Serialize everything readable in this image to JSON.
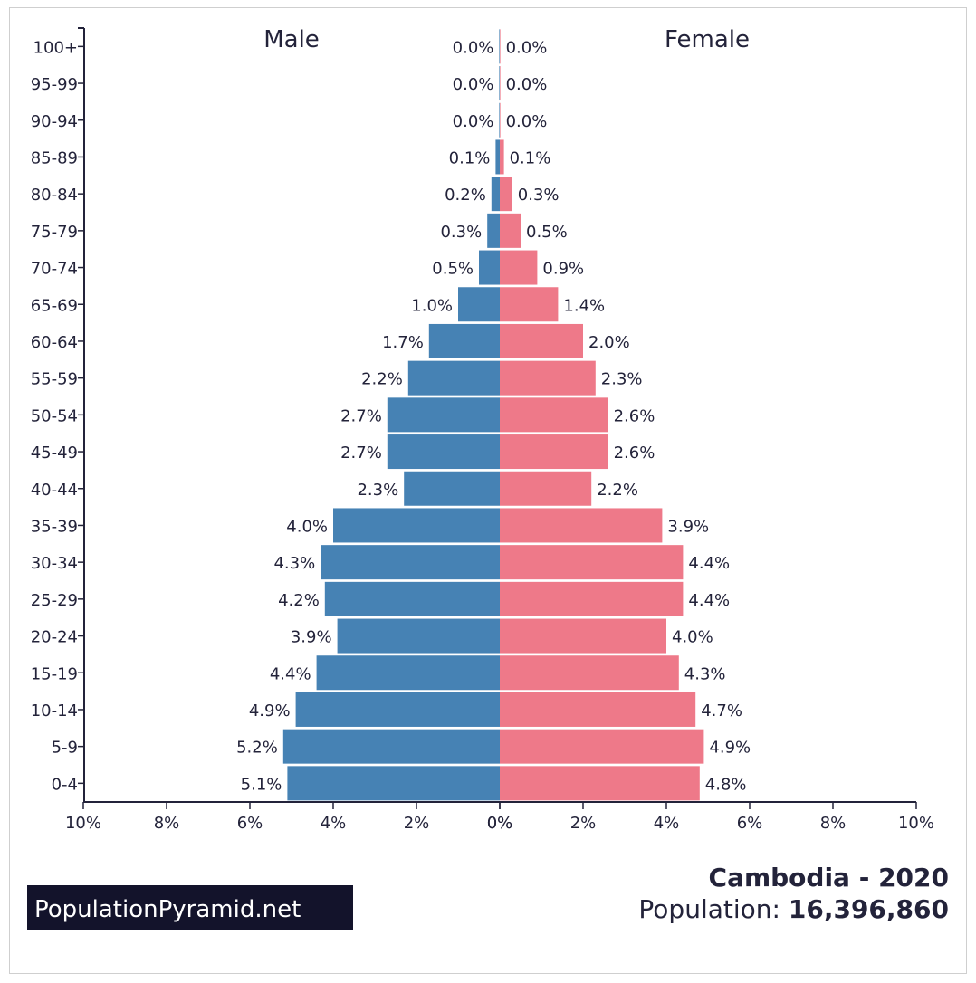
{
  "chart_data": {
    "type": "bar",
    "orientation": "horizontal-pyramid",
    "categories": [
      "100+",
      "95-99",
      "90-94",
      "85-89",
      "80-84",
      "75-79",
      "70-74",
      "65-69",
      "60-64",
      "55-59",
      "50-54",
      "45-49",
      "40-44",
      "35-39",
      "30-34",
      "25-29",
      "20-24",
      "15-19",
      "10-14",
      "5-9",
      "0-4"
    ],
    "series": [
      {
        "name": "Male",
        "color": "#4682b4",
        "values": [
          0.0,
          0.0,
          0.0,
          0.1,
          0.2,
          0.3,
          0.5,
          1.0,
          1.7,
          2.2,
          2.7,
          2.7,
          2.3,
          4.0,
          4.3,
          4.2,
          3.9,
          4.4,
          4.9,
          5.2,
          5.1
        ],
        "labels": [
          "0.0%",
          "0.0%",
          "0.0%",
          "0.1%",
          "0.2%",
          "0.3%",
          "0.5%",
          "1.0%",
          "1.7%",
          "2.2%",
          "2.7%",
          "2.7%",
          "2.3%",
          "4.0%",
          "4.3%",
          "4.2%",
          "3.9%",
          "4.4%",
          "4.9%",
          "5.2%",
          "5.1%"
        ]
      },
      {
        "name": "Female",
        "color": "#ee7989",
        "values": [
          0.0,
          0.0,
          0.0,
          0.1,
          0.3,
          0.5,
          0.9,
          1.4,
          2.0,
          2.3,
          2.6,
          2.6,
          2.2,
          3.9,
          4.4,
          4.4,
          4.0,
          4.3,
          4.7,
          4.9,
          4.8
        ],
        "labels": [
          "0.0%",
          "0.0%",
          "0.0%",
          "0.1%",
          "0.3%",
          "0.5%",
          "0.9%",
          "1.4%",
          "2.0%",
          "2.3%",
          "2.6%",
          "2.6%",
          "2.2%",
          "3.9%",
          "4.4%",
          "4.4%",
          "4.0%",
          "4.3%",
          "4.7%",
          "4.9%",
          "4.8%"
        ]
      }
    ],
    "xlim": [
      0,
      10
    ],
    "male_ticks": [
      "10%",
      "8%",
      "6%",
      "4%",
      "2%",
      "0%"
    ],
    "female_ticks": [
      "0%",
      "2%",
      "4%",
      "6%",
      "8%",
      "10%"
    ],
    "grid": false,
    "legend": "none"
  },
  "titles": {
    "male": "Male",
    "female": "Female",
    "country_year": "Cambodia - 2020",
    "population_label": "Population: ",
    "population_value": "16,396,860"
  },
  "brand": {
    "text": "PopulationPyramid.net",
    "bg_color": "#13132b",
    "fg_color": "#ffffff"
  }
}
